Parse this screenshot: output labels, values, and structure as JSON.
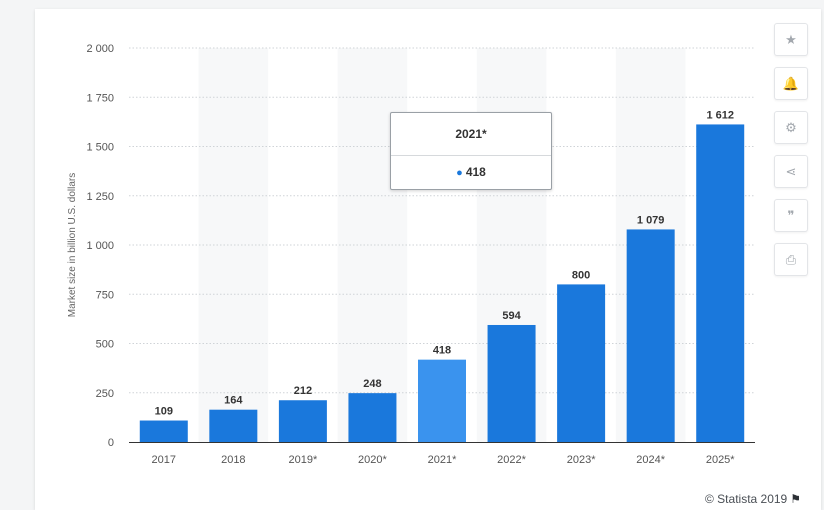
{
  "chart_data": {
    "type": "bar",
    "categories": [
      "2017",
      "2018",
      "2019*",
      "2020*",
      "2021*",
      "2022*",
      "2023*",
      "2024*",
      "2025*"
    ],
    "values": [
      109,
      164,
      212,
      248,
      418,
      594,
      800,
      1079,
      1612
    ],
    "value_labels": [
      "109",
      "164",
      "212",
      "248",
      "418",
      "594",
      "800",
      "1 079",
      "1 612"
    ],
    "y_ticks": [
      0,
      250,
      500,
      750,
      1000,
      1250,
      1500,
      1750,
      2000
    ],
    "y_tick_labels": [
      "0",
      "250",
      "500",
      "750",
      "1 000",
      "1 250",
      "1 500",
      "1 750",
      "2 000"
    ],
    "ylim": [
      0,
      2000
    ],
    "ylabel": "Market size in billion U.S. dollars",
    "xlabel": "",
    "title": "",
    "grid": true,
    "highlighted_index": 4,
    "colors": {
      "bar": "#1a78dc",
      "bar_highlight": "#3a93ee",
      "band": "#f7f8f9",
      "grid": "#cfd3d7"
    }
  },
  "tooltip": {
    "title": "2021*",
    "value": "418",
    "dot_color": "#1a78dc"
  },
  "toolbar": {
    "buttons": [
      {
        "name": "star-icon",
        "glyph": "★"
      },
      {
        "name": "bell-icon",
        "glyph": "🔔"
      },
      {
        "name": "gear-icon",
        "glyph": "⚙"
      },
      {
        "name": "share-icon",
        "glyph": "⋖"
      },
      {
        "name": "quote-icon",
        "glyph": "❞"
      },
      {
        "name": "print-icon",
        "glyph": "⎙"
      }
    ]
  },
  "credit": {
    "text": "© Statista 2019",
    "flag_glyph": "⚑"
  }
}
